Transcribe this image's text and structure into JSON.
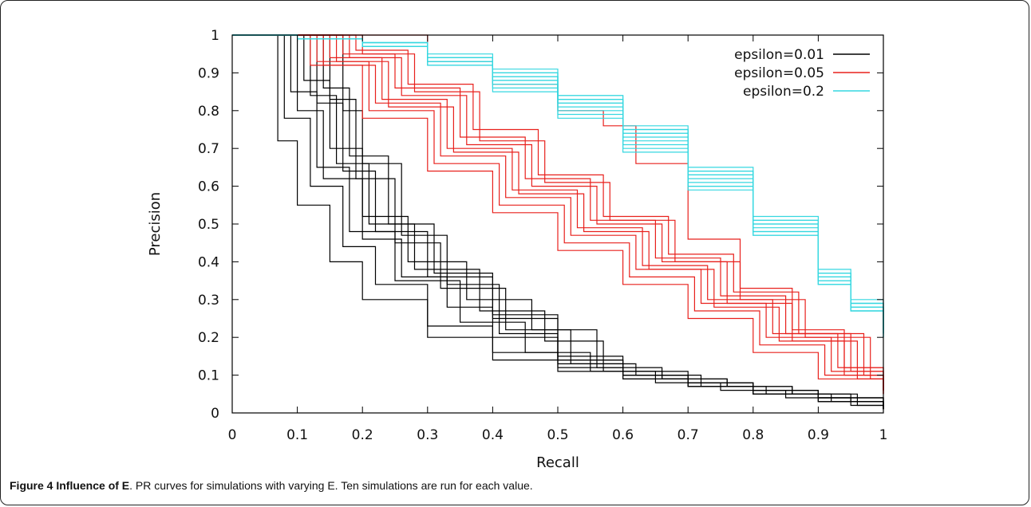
{
  "figure": {
    "caption_label": "Figure 4 Influence of E",
    "caption_text": ". PR curves for simulations with varying E. Ten simulations are run for each value."
  },
  "chart_data": {
    "type": "line",
    "title": "",
    "xlabel": "Recall",
    "ylabel": "Precision",
    "xlim": [
      0,
      1
    ],
    "ylim": [
      0,
      1
    ],
    "xticks": [
      "0",
      "0.1",
      "0.2",
      "0.3",
      "0.4",
      "0.5",
      "0.6",
      "0.7",
      "0.8",
      "0.9",
      "1"
    ],
    "yticks": [
      "0",
      "0.1",
      "0.2",
      "0.3",
      "0.4",
      "0.5",
      "0.6",
      "0.7",
      "0.8",
      "0.9",
      "1"
    ],
    "grid": false,
    "legend_position": "top-right",
    "series": [
      {
        "name": "epsilon=0.01",
        "color": "#000000",
        "runs": [
          {
            "x": [
              0,
              0.04,
              0.07,
              0.1,
              0.15,
              0.2,
              0.3,
              0.4,
              0.5,
              0.6,
              0.7,
              0.8,
              0.9,
              1.0
            ],
            "y": [
              1.0,
              1.0,
              0.72,
              0.55,
              0.4,
              0.3,
              0.2,
              0.14,
              0.11,
              0.09,
              0.07,
              0.05,
              0.03,
              0.01
            ]
          },
          {
            "x": [
              0,
              0.05,
              0.08,
              0.12,
              0.17,
              0.22,
              0.3,
              0.4,
              0.5,
              0.6,
              0.7,
              0.8,
              0.9,
              1.0
            ],
            "y": [
              1.0,
              1.0,
              0.78,
              0.6,
              0.44,
              0.34,
              0.23,
              0.16,
              0.12,
              0.09,
              0.07,
              0.05,
              0.03,
              0.01
            ]
          },
          {
            "x": [
              0,
              0.07,
              0.1,
              0.14,
              0.2,
              0.26,
              0.33,
              0.4,
              0.5,
              0.6,
              0.7,
              0.8,
              0.9,
              1.0
            ],
            "y": [
              1.0,
              1.0,
              0.8,
              0.62,
              0.46,
              0.36,
              0.28,
              0.2,
              0.13,
              0.1,
              0.08,
              0.06,
              0.04,
              0.01
            ]
          },
          {
            "x": [
              0,
              0.06,
              0.09,
              0.13,
              0.18,
              0.25,
              0.35,
              0.45,
              0.55,
              0.65,
              0.75,
              0.85,
              0.95,
              1.0
            ],
            "y": [
              1.0,
              1.0,
              0.85,
              0.65,
              0.48,
              0.35,
              0.24,
              0.16,
              0.11,
              0.08,
              0.06,
              0.04,
              0.02,
              0.01
            ]
          },
          {
            "x": [
              0,
              0.08,
              0.11,
              0.15,
              0.2,
              0.27,
              0.36,
              0.46,
              0.56,
              0.66,
              0.76,
              0.86,
              0.96,
              1.0
            ],
            "y": [
              1.0,
              1.0,
              0.88,
              0.7,
              0.52,
              0.4,
              0.3,
              0.22,
              0.12,
              0.09,
              0.07,
              0.05,
              0.02,
              0.01
            ]
          },
          {
            "x": [
              0,
              0.09,
              0.12,
              0.16,
              0.21,
              0.28,
              0.38,
              0.48,
              0.57,
              0.66,
              0.76,
              0.86,
              0.95,
              1.0
            ],
            "y": [
              1.0,
              1.0,
              0.84,
              0.66,
              0.5,
              0.38,
              0.27,
              0.19,
              0.11,
              0.09,
              0.07,
              0.05,
              0.03,
              0.01
            ]
          },
          {
            "x": [
              0,
              0.1,
              0.13,
              0.17,
              0.22,
              0.3,
              0.4,
              0.5,
              0.6,
              0.7,
              0.8,
              0.9,
              1.0
            ],
            "y": [
              1.0,
              1.0,
              0.82,
              0.64,
              0.48,
              0.36,
              0.25,
              0.15,
              0.11,
              0.08,
              0.06,
              0.04,
              0.01
            ]
          },
          {
            "x": [
              0,
              0.11,
              0.14,
              0.18,
              0.24,
              0.31,
              0.4,
              0.5,
              0.6,
              0.7,
              0.8,
              0.9,
              1.0
            ],
            "y": [
              1.0,
              1.0,
              0.86,
              0.68,
              0.5,
              0.37,
              0.26,
              0.14,
              0.1,
              0.08,
              0.06,
              0.04,
              0.01
            ]
          },
          {
            "x": [
              0,
              0.12,
              0.15,
              0.19,
              0.25,
              0.32,
              0.42,
              0.52,
              0.62,
              0.72,
              0.82,
              0.92,
              1.0
            ],
            "y": [
              1.0,
              1.0,
              0.83,
              0.62,
              0.45,
              0.33,
              0.22,
              0.13,
              0.1,
              0.07,
              0.05,
              0.03,
              0.01
            ]
          },
          {
            "x": [
              0,
              0.14,
              0.17,
              0.2,
              0.26,
              0.33,
              0.41,
              0.5,
              0.6,
              0.7,
              0.8,
              0.9,
              1.0
            ],
            "y": [
              1.0,
              1.0,
              0.8,
              0.66,
              0.47,
              0.34,
              0.21,
              0.14,
              0.1,
              0.07,
              0.05,
              0.03,
              0.01
            ]
          }
        ]
      },
      {
        "name": "epsilon=0.05",
        "color": "#e8201c",
        "runs": [
          {
            "x": [
              0,
              0.07,
              0.12,
              0.2,
              0.3,
              0.4,
              0.5,
              0.6,
              0.7,
              0.8,
              0.9,
              1.0
            ],
            "y": [
              1.0,
              1.0,
              0.92,
              0.78,
              0.64,
              0.53,
              0.43,
              0.34,
              0.25,
              0.16,
              0.09,
              0.05
            ]
          },
          {
            "x": [
              0,
              0.08,
              0.13,
              0.21,
              0.31,
              0.41,
              0.51,
              0.61,
              0.71,
              0.81,
              0.91,
              1.0
            ],
            "y": [
              1.0,
              1.0,
              0.93,
              0.8,
              0.66,
              0.55,
              0.45,
              0.36,
              0.27,
              0.18,
              0.1,
              0.06
            ]
          },
          {
            "x": [
              0,
              0.09,
              0.14,
              0.22,
              0.32,
              0.42,
              0.52,
              0.62,
              0.72,
              0.82,
              0.92,
              1.0
            ],
            "y": [
              1.0,
              1.0,
              0.92,
              0.82,
              0.68,
              0.57,
              0.47,
              0.38,
              0.29,
              0.2,
              0.11,
              0.06
            ]
          },
          {
            "x": [
              0,
              0.1,
              0.15,
              0.23,
              0.33,
              0.43,
              0.53,
              0.63,
              0.73,
              0.83,
              0.93,
              1.0
            ],
            "y": [
              1.0,
              1.0,
              0.94,
              0.83,
              0.7,
              0.59,
              0.49,
              0.39,
              0.3,
              0.21,
              0.12,
              0.06
            ]
          },
          {
            "x": [
              0,
              0.11,
              0.16,
              0.24,
              0.34,
              0.44,
              0.54,
              0.64,
              0.74,
              0.84,
              0.94,
              1.0
            ],
            "y": [
              1.0,
              1.0,
              0.93,
              0.81,
              0.69,
              0.58,
              0.48,
              0.38,
              0.28,
              0.19,
              0.1,
              0.05
            ]
          },
          {
            "x": [
              0,
              0.12,
              0.17,
              0.25,
              0.35,
              0.45,
              0.55,
              0.65,
              0.75,
              0.85,
              0.95,
              1.0
            ],
            "y": [
              1.0,
              1.0,
              0.95,
              0.86,
              0.73,
              0.62,
              0.51,
              0.41,
              0.31,
              0.21,
              0.11,
              0.06
            ]
          },
          {
            "x": [
              0,
              0.13,
              0.18,
              0.26,
              0.36,
              0.46,
              0.56,
              0.66,
              0.76,
              0.86,
              0.96,
              1.0
            ],
            "y": [
              1.0,
              1.0,
              0.94,
              0.84,
              0.71,
              0.6,
              0.5,
              0.4,
              0.29,
              0.19,
              0.09,
              0.05
            ]
          },
          {
            "x": [
              0,
              0.14,
              0.19,
              0.27,
              0.37,
              0.47,
              0.57,
              0.67,
              0.77,
              0.87,
              0.97,
              1.0
            ],
            "y": [
              1.0,
              1.0,
              0.96,
              0.87,
              0.75,
              0.63,
              0.52,
              0.42,
              0.32,
              0.21,
              0.1,
              0.06
            ]
          },
          {
            "x": [
              0,
              0.15,
              0.2,
              0.28,
              0.38,
              0.48,
              0.58,
              0.68,
              0.78,
              0.88,
              0.98,
              1.0
            ],
            "y": [
              1.0,
              1.0,
              0.95,
              0.85,
              0.72,
              0.61,
              0.51,
              0.4,
              0.3,
              0.2,
              0.09,
              0.05
            ]
          },
          {
            "x": [
              0,
              0.18,
              0.3,
              0.4,
              0.5,
              0.57,
              0.62,
              0.7,
              0.78,
              0.86,
              0.94,
              1.0
            ],
            "y": [
              1.0,
              1.0,
              0.93,
              0.87,
              0.8,
              0.76,
              0.66,
              0.46,
              0.33,
              0.22,
              0.12,
              0.06
            ]
          }
        ]
      },
      {
        "name": "epsilon=0.2",
        "color": "#35d7e0",
        "runs": [
          {
            "x": [
              0,
              0.1,
              0.2,
              0.3,
              0.4,
              0.5,
              0.6,
              0.7,
              0.8,
              0.9,
              0.95,
              1.0
            ],
            "y": [
              1.0,
              0.99,
              0.97,
              0.93,
              0.88,
              0.81,
              0.72,
              0.61,
              0.48,
              0.34,
              0.27,
              0.2
            ]
          },
          {
            "x": [
              0,
              0.1,
              0.2,
              0.3,
              0.4,
              0.5,
              0.6,
              0.7,
              0.8,
              0.9,
              0.95,
              1.0
            ],
            "y": [
              1.0,
              0.99,
              0.97,
              0.94,
              0.89,
              0.82,
              0.74,
              0.63,
              0.5,
              0.36,
              0.28,
              0.21
            ]
          },
          {
            "x": [
              0,
              0.1,
              0.2,
              0.3,
              0.4,
              0.5,
              0.6,
              0.7,
              0.8,
              0.9,
              0.95,
              1.0
            ],
            "y": [
              1.0,
              0.99,
              0.98,
              0.94,
              0.9,
              0.83,
              0.75,
              0.64,
              0.51,
              0.37,
              0.29,
              0.22
            ]
          },
          {
            "x": [
              0,
              0.1,
              0.2,
              0.3,
              0.4,
              0.5,
              0.6,
              0.7,
              0.8,
              0.9,
              0.95,
              1.0
            ],
            "y": [
              1.0,
              0.99,
              0.97,
              0.93,
              0.87,
              0.8,
              0.71,
              0.6,
              0.48,
              0.35,
              0.28,
              0.21
            ]
          },
          {
            "x": [
              0,
              0.1,
              0.2,
              0.3,
              0.4,
              0.5,
              0.6,
              0.7,
              0.8,
              0.9,
              0.95,
              1.0
            ],
            "y": [
              1.0,
              0.99,
              0.98,
              0.95,
              0.91,
              0.84,
              0.76,
              0.65,
              0.52,
              0.38,
              0.3,
              0.22
            ]
          },
          {
            "x": [
              0,
              0.1,
              0.2,
              0.3,
              0.4,
              0.5,
              0.6,
              0.7,
              0.8,
              0.9,
              0.95,
              1.0
            ],
            "y": [
              1.0,
              0.99,
              0.97,
              0.92,
              0.86,
              0.79,
              0.7,
              0.6,
              0.47,
              0.34,
              0.27,
              0.2
            ]
          },
          {
            "x": [
              0,
              0.1,
              0.2,
              0.3,
              0.4,
              0.5,
              0.6,
              0.7,
              0.8,
              0.9,
              0.95,
              1.0
            ],
            "y": [
              1.0,
              0.99,
              0.97,
              0.93,
              0.88,
              0.82,
              0.73,
              0.62,
              0.49,
              0.35,
              0.28,
              0.21
            ]
          },
          {
            "x": [
              0,
              0.1,
              0.2,
              0.3,
              0.4,
              0.5,
              0.6,
              0.7,
              0.8,
              0.9,
              0.95,
              1.0
            ],
            "y": [
              1.0,
              0.99,
              0.98,
              0.94,
              0.89,
              0.83,
              0.74,
              0.63,
              0.5,
              0.36,
              0.29,
              0.22
            ]
          },
          {
            "x": [
              0,
              0.1,
              0.2,
              0.3,
              0.4,
              0.5,
              0.6,
              0.7,
              0.8,
              0.9,
              0.95,
              1.0
            ],
            "y": [
              1.0,
              0.99,
              0.97,
              0.92,
              0.85,
              0.78,
              0.69,
              0.59,
              0.47,
              0.34,
              0.27,
              0.2
            ]
          },
          {
            "x": [
              0,
              0.1,
              0.2,
              0.3,
              0.4,
              0.5,
              0.6,
              0.7,
              0.8,
              0.9,
              0.95,
              1.0
            ],
            "y": [
              1.0,
              0.99,
              0.98,
              0.94,
              0.9,
              0.84,
              0.75,
              0.64,
              0.51,
              0.37,
              0.29,
              0.21
            ]
          }
        ]
      }
    ]
  }
}
